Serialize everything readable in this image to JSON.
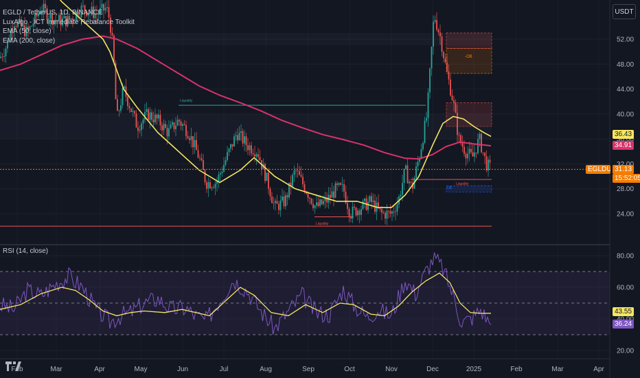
{
  "header": {
    "symbol_line": "EGLD / TetherUS, 1D, BINANCE",
    "indicator_1": "LuxAlgo - ICT Immediate Rebalance Toolkit",
    "indicator_2": "EMA (50, close)",
    "indicator_3": "EMA (200, close)",
    "rsi_label": "RSI (14, close)",
    "currency_button": "USDT"
  },
  "price_tags": {
    "ema50": "36.43",
    "ema200": "34.91",
    "symbol": "EGLDUSDT",
    "last": "31.13",
    "countdown": "15:52:05",
    "rsi_ma": "43.55",
    "rsi": "36.24"
  },
  "annotations": {
    "ob": "-OB",
    "ob2": "OB",
    "liquidity_1": "Liquidity",
    "liquidity_2": "Liquidity",
    "liquidity_3": "Liquidity"
  },
  "colors": {
    "background": "#131722",
    "up": "#26a69a",
    "down": "#ef5350",
    "ema50": "#f5e663",
    "ema200": "#d9336b",
    "rsi": "#7e57c2",
    "rsi_ma": "#f5e663",
    "last_price": "#f57c00"
  },
  "chart_data": {
    "type": "candlestick",
    "title": "EGLD / TetherUS, 1D, BINANCE",
    "x_ticks": [
      "Feb",
      "Mar",
      "Apr",
      "May",
      "Jun",
      "Jul",
      "Aug",
      "Sep",
      "Oct",
      "Nov",
      "Dec",
      "2025",
      "Feb",
      "Mar",
      "Apr"
    ],
    "price_axis": {
      "ticks": [
        24.0,
        28.0,
        32.0,
        36.0,
        40.0,
        44.0,
        48.0,
        52.0
      ],
      "range": [
        21.5,
        57.5
      ],
      "grid": true
    },
    "rsi_axis": {
      "ticks": [
        20.0,
        40.0,
        60.0,
        80.0
      ],
      "range": [
        14,
        86
      ],
      "bands": [
        30,
        50,
        70
      ]
    },
    "ema50_last": 36.43,
    "ema200_last": 34.91,
    "last_price": 31.13,
    "rsi_last": 36.24,
    "rsi_ma_last": 43.55,
    "ema50_path": [
      [
        0,
        68
      ],
      [
        30,
        66
      ],
      [
        60,
        62
      ],
      [
        90,
        58
      ],
      [
        120,
        55
      ],
      [
        150,
        52
      ],
      [
        160,
        50
      ],
      [
        170,
        47
      ],
      [
        180,
        44
      ],
      [
        200,
        41
      ],
      [
        230,
        37
      ],
      [
        260,
        34
      ],
      [
        290,
        31
      ],
      [
        320,
        29
      ],
      [
        350,
        31
      ],
      [
        370,
        33
      ],
      [
        400,
        30
      ],
      [
        430,
        28
      ],
      [
        460,
        27
      ],
      [
        490,
        26
      ],
      [
        520,
        26
      ],
      [
        550,
        25
      ],
      [
        570,
        25
      ],
      [
        590,
        27
      ],
      [
        610,
        30
      ],
      [
        630,
        35
      ],
      [
        645,
        38.5
      ],
      [
        660,
        39.6
      ],
      [
        675,
        39.2
      ],
      [
        690,
        38
      ],
      [
        705,
        37
      ],
      [
        715,
        36.4
      ]
    ],
    "ema200_path": [
      [
        0,
        47
      ],
      [
        30,
        48
      ],
      [
        60,
        49.5
      ],
      [
        90,
        51
      ],
      [
        120,
        52
      ],
      [
        150,
        52.5
      ],
      [
        170,
        52
      ],
      [
        200,
        50.5
      ],
      [
        230,
        48.5
      ],
      [
        260,
        46.5
      ],
      [
        290,
        44.5
      ],
      [
        320,
        43
      ],
      [
        350,
        41.8
      ],
      [
        380,
        40.5
      ],
      [
        410,
        39
      ],
      [
        440,
        37.8
      ],
      [
        470,
        36.7
      ],
      [
        500,
        35.9
      ],
      [
        530,
        35
      ],
      [
        560,
        33.8
      ],
      [
        590,
        32.9
      ],
      [
        610,
        32.8
      ],
      [
        630,
        33.5
      ],
      [
        650,
        34.8
      ],
      [
        670,
        35.5
      ],
      [
        690,
        35.2
      ],
      [
        715,
        34.9
      ]
    ],
    "price_path": [
      [
        0,
        49
      ],
      [
        10,
        51
      ],
      [
        20,
        55
      ],
      [
        40,
        53
      ],
      [
        60,
        57
      ],
      [
        80,
        55
      ],
      [
        100,
        55
      ],
      [
        120,
        57
      ],
      [
        140,
        56
      ],
      [
        155,
        57
      ],
      [
        160,
        55
      ],
      [
        165,
        50
      ],
      [
        170,
        39
      ],
      [
        180,
        44
      ],
      [
        190,
        41
      ],
      [
        200,
        38
      ],
      [
        215,
        40
      ],
      [
        230,
        39
      ],
      [
        245,
        37
      ],
      [
        260,
        39
      ],
      [
        275,
        37
      ],
      [
        290,
        33
      ],
      [
        300,
        29
      ],
      [
        315,
        29
      ],
      [
        330,
        33
      ],
      [
        345,
        37
      ],
      [
        360,
        35
      ],
      [
        375,
        34
      ],
      [
        390,
        29
      ],
      [
        400,
        25
      ],
      [
        415,
        26
      ],
      [
        430,
        31
      ],
      [
        445,
        28
      ],
      [
        460,
        25
      ],
      [
        475,
        26
      ],
      [
        490,
        28
      ],
      [
        500,
        28
      ],
      [
        510,
        24
      ],
      [
        525,
        25
      ],
      [
        540,
        26
      ],
      [
        555,
        24
      ],
      [
        570,
        24
      ],
      [
        580,
        26
      ],
      [
        590,
        31
      ],
      [
        600,
        28
      ],
      [
        612,
        34
      ],
      [
        622,
        40
      ],
      [
        632,
        56
      ],
      [
        642,
        52
      ],
      [
        650,
        47
      ],
      [
        660,
        42
      ],
      [
        668,
        36
      ],
      [
        678,
        34
      ],
      [
        688,
        33
      ],
      [
        698,
        36
      ],
      [
        708,
        32
      ],
      [
        715,
        31.1
      ]
    ],
    "rsi_path": [
      [
        0,
        49
      ],
      [
        20,
        46
      ],
      [
        40,
        58
      ],
      [
        60,
        55
      ],
      [
        80,
        62
      ],
      [
        100,
        67
      ],
      [
        120,
        60
      ],
      [
        140,
        46
      ],
      [
        160,
        38
      ],
      [
        175,
        42
      ],
      [
        190,
        44
      ],
      [
        210,
        50
      ],
      [
        230,
        53
      ],
      [
        250,
        46
      ],
      [
        270,
        47
      ],
      [
        285,
        42
      ],
      [
        300,
        39
      ],
      [
        320,
        52
      ],
      [
        340,
        65
      ],
      [
        360,
        58
      ],
      [
        380,
        45
      ],
      [
        400,
        34
      ],
      [
        420,
        45
      ],
      [
        440,
        55
      ],
      [
        460,
        44
      ],
      [
        480,
        43
      ],
      [
        500,
        59
      ],
      [
        515,
        49
      ],
      [
        535,
        41
      ],
      [
        550,
        46
      ],
      [
        570,
        42
      ],
      [
        590,
        65
      ],
      [
        605,
        56
      ],
      [
        620,
        70
      ],
      [
        632,
        79
      ],
      [
        645,
        72
      ],
      [
        660,
        55
      ],
      [
        672,
        38
      ],
      [
        685,
        40
      ],
      [
        700,
        46
      ],
      [
        715,
        36.2
      ]
    ],
    "rsi_ma_path": [
      [
        0,
        46
      ],
      [
        30,
        49
      ],
      [
        60,
        56
      ],
      [
        90,
        60
      ],
      [
        110,
        58
      ],
      [
        130,
        52
      ],
      [
        150,
        45
      ],
      [
        170,
        42
      ],
      [
        190,
        44
      ],
      [
        210,
        45
      ],
      [
        240,
        44
      ],
      [
        265,
        46
      ],
      [
        285,
        44
      ],
      [
        305,
        42
      ],
      [
        330,
        52
      ],
      [
        350,
        60
      ],
      [
        370,
        55
      ],
      [
        395,
        44
      ],
      [
        420,
        42
      ],
      [
        445,
        49
      ],
      [
        470,
        44
      ],
      [
        495,
        50
      ],
      [
        515,
        49
      ],
      [
        540,
        43
      ],
      [
        560,
        42
      ],
      [
        580,
        48
      ],
      [
        600,
        57
      ],
      [
        620,
        64
      ],
      [
        640,
        69
      ],
      [
        655,
        63
      ],
      [
        670,
        50
      ],
      [
        685,
        44
      ],
      [
        700,
        43.5
      ],
      [
        715,
        43.55
      ]
    ],
    "zones": [
      {
        "label": "-OB",
        "price": [
          46.5,
          50.5
        ],
        "color": "#f57c00"
      },
      {
        "label": "",
        "price": [
          50.5,
          53.0
        ],
        "color": "#ef5350"
      },
      {
        "label": "",
        "price": [
          38.0,
          41.8
        ],
        "color": "#ef5350"
      },
      {
        "label": "OB",
        "price": [
          27.5,
          28.5
        ],
        "color": "#2962ff"
      }
    ],
    "levels": [
      {
        "price": 41.4,
        "from": 260,
        "to": 620,
        "color": "#26a69a",
        "label": "Liquidity"
      },
      {
        "price": 22.0,
        "from": 0,
        "to": 716,
        "color": "#ef5350",
        "label": "Liquidity"
      },
      {
        "price": 23.5,
        "from": 458,
        "to": 515,
        "color": "#ef5350",
        "label": ""
      },
      {
        "price": 29.5,
        "from": 598,
        "to": 716,
        "color": "#ef5350",
        "label": "Liquidity"
      }
    ]
  }
}
